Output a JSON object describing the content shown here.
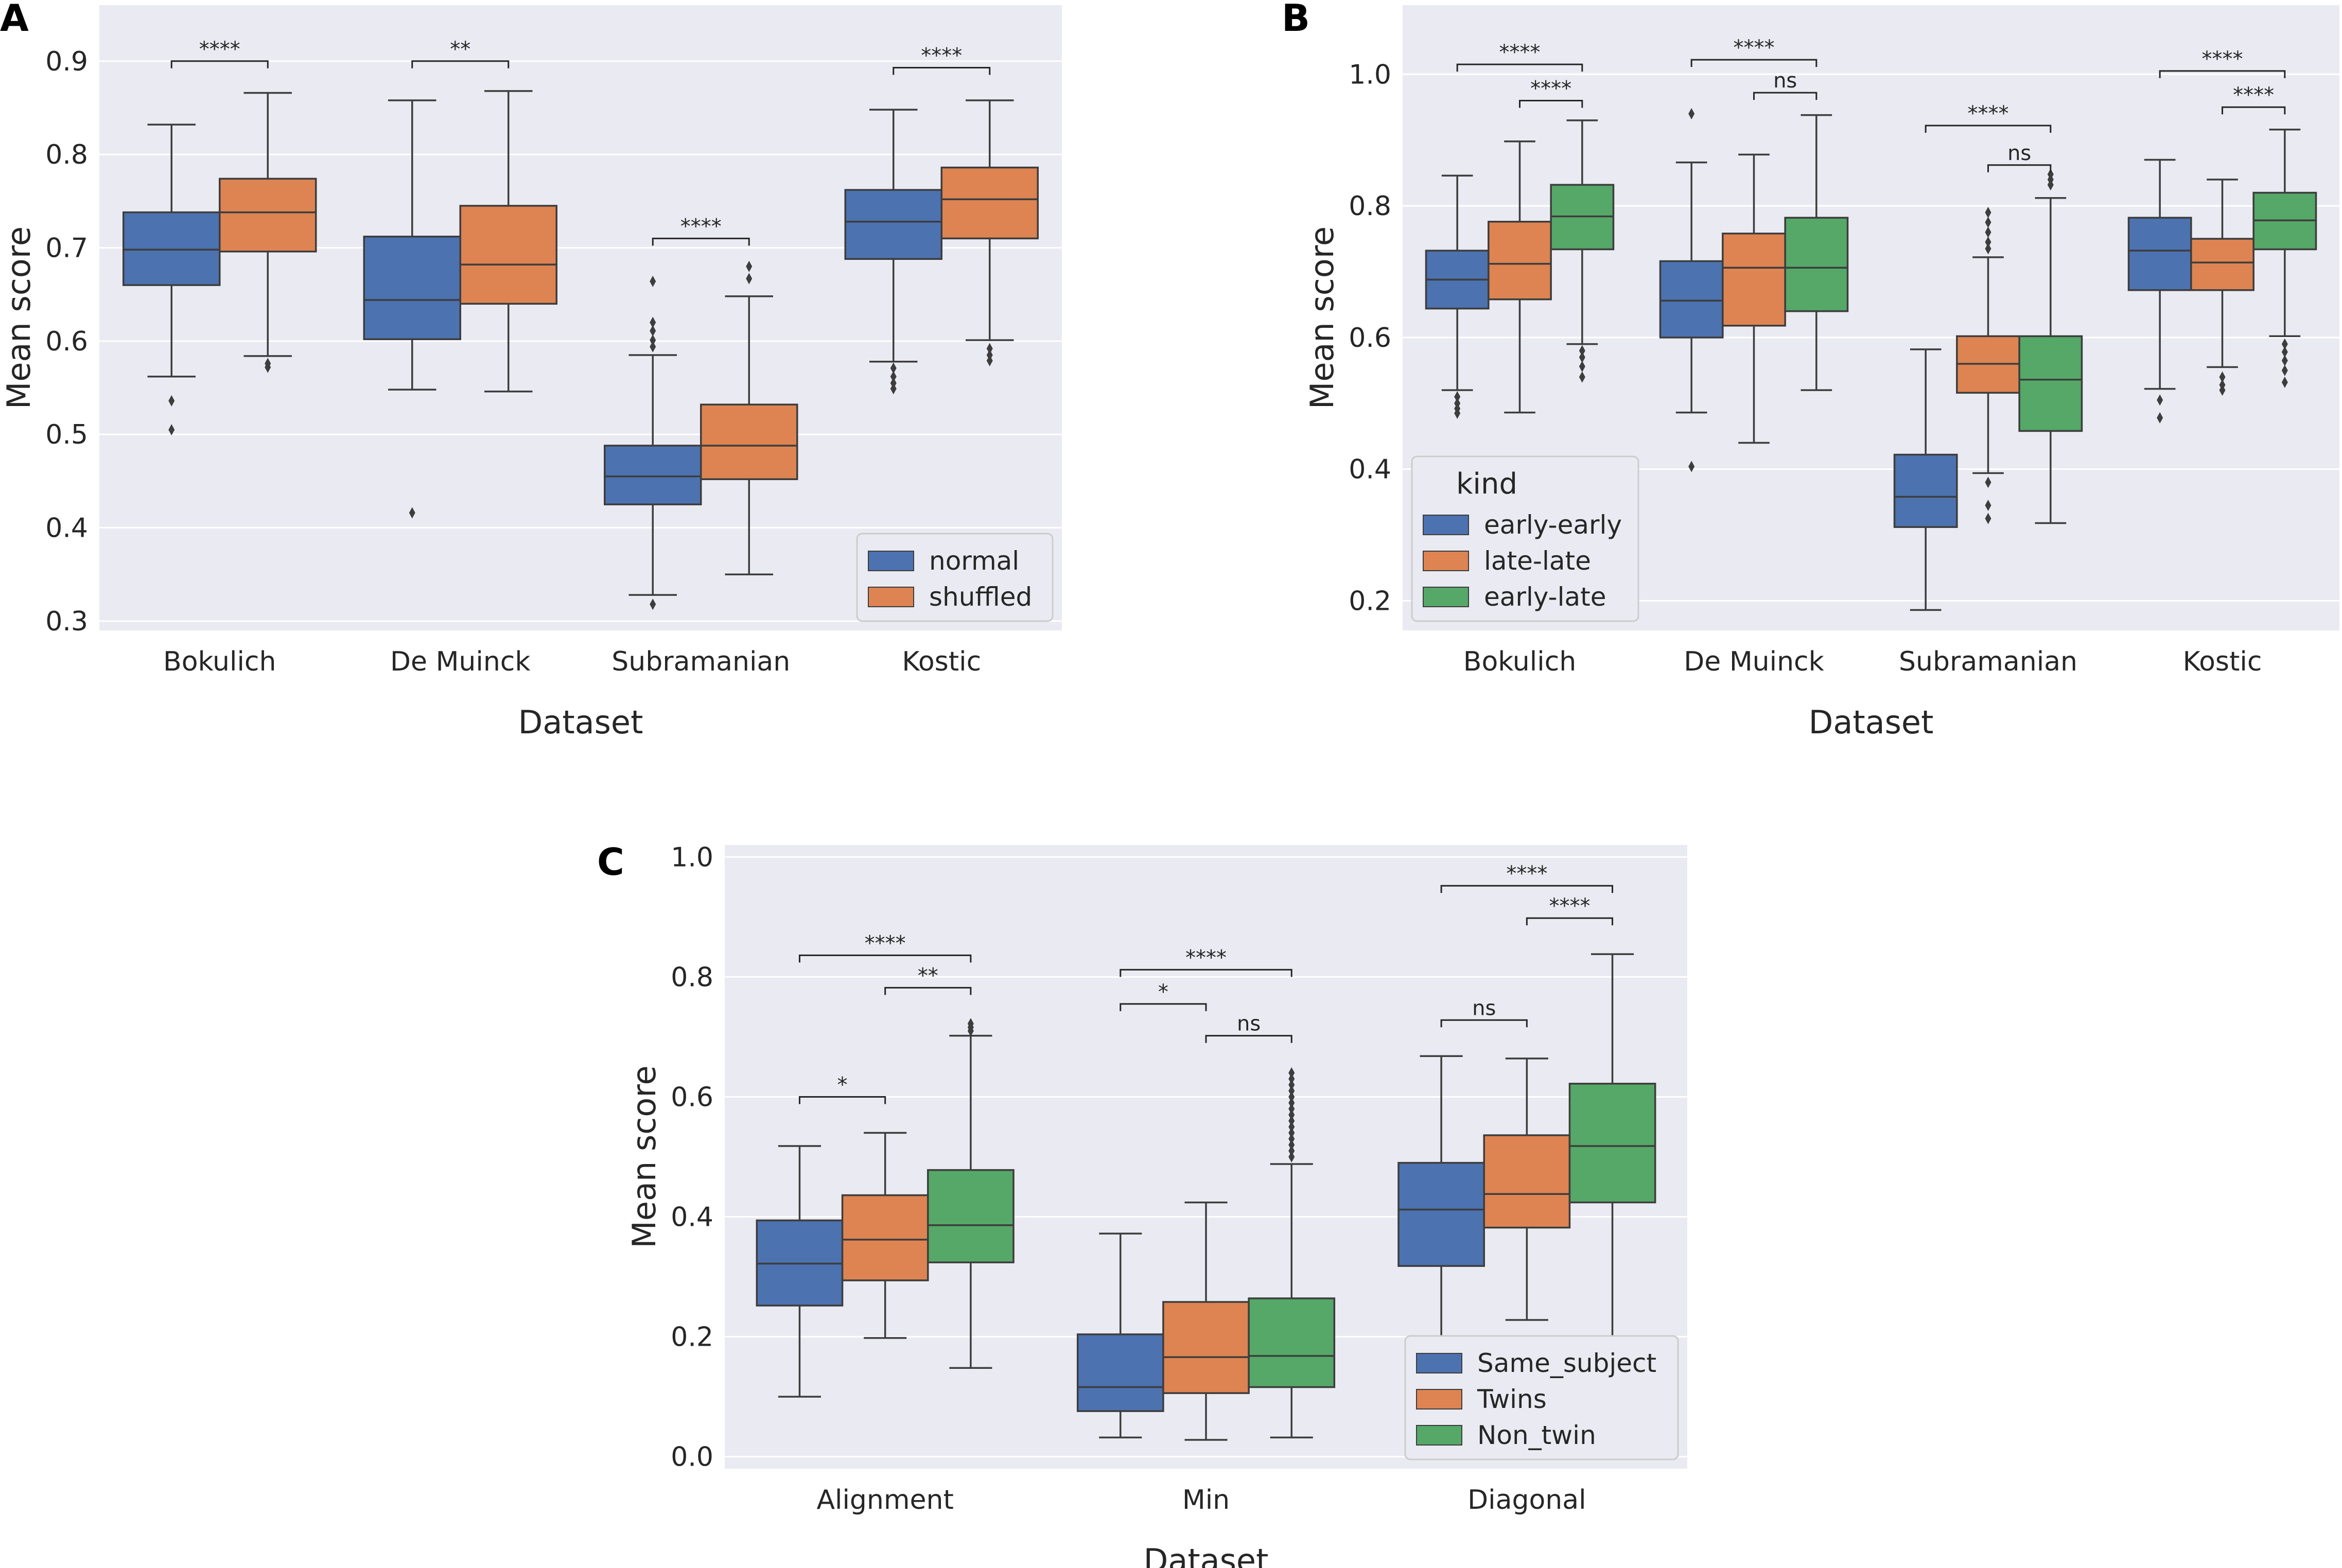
{
  "chart_data": [
    {
      "panel": "A",
      "type": "box",
      "xlabel": "Dataset",
      "ylabel": "Mean score",
      "ylim": [
        0.29,
        0.96
      ],
      "yticks": [
        0.3,
        0.4,
        0.5,
        0.6,
        0.7,
        0.8,
        0.9
      ],
      "ytick_labels": [
        "0.3",
        "0.4",
        "0.5",
        "0.6",
        "0.7",
        "0.8",
        "0.9"
      ],
      "categories": [
        "Bokulich",
        "De Muinck",
        "Subramanian",
        "Kostic"
      ],
      "legend": {
        "title": "",
        "position": "lower-right"
      },
      "series": [
        {
          "name": "normal",
          "color": "#4c72b0",
          "boxes": [
            {
              "whislo": 0.562,
              "q1": 0.66,
              "med": 0.698,
              "q3": 0.738,
              "whishi": 0.832,
              "fliers": [
                0.536,
                0.505
              ]
            },
            {
              "whislo": 0.548,
              "q1": 0.602,
              "med": 0.644,
              "q3": 0.712,
              "whishi": 0.858,
              "fliers": [
                0.416
              ]
            },
            {
              "whislo": 0.328,
              "q1": 0.425,
              "med": 0.455,
              "q3": 0.488,
              "whishi": 0.585,
              "fliers": [
                0.664,
                0.62,
                0.611,
                0.601,
                0.594,
                0.318
              ]
            },
            {
              "whislo": 0.578,
              "q1": 0.688,
              "med": 0.728,
              "q3": 0.762,
              "whishi": 0.848,
              "fliers": [
                0.571,
                0.562,
                0.555,
                0.549
              ]
            }
          ]
        },
        {
          "name": "shuffled",
          "color": "#dd8452",
          "boxes": [
            {
              "whislo": 0.584,
              "q1": 0.696,
              "med": 0.738,
              "q3": 0.774,
              "whishi": 0.866,
              "fliers": [
                0.576,
                0.572
              ]
            },
            {
              "whislo": 0.546,
              "q1": 0.64,
              "med": 0.682,
              "q3": 0.745,
              "whishi": 0.868,
              "fliers": []
            },
            {
              "whislo": 0.35,
              "q1": 0.452,
              "med": 0.488,
              "q3": 0.532,
              "whishi": 0.648,
              "fliers": [
                0.68,
                0.667
              ]
            },
            {
              "whislo": 0.601,
              "q1": 0.71,
              "med": 0.752,
              "q3": 0.786,
              "whishi": 0.858,
              "fliers": [
                0.592,
                0.585,
                0.579
              ]
            }
          ]
        }
      ],
      "annotations": [
        {
          "category": 0,
          "from": 0,
          "to": 1,
          "label": "****",
          "y": 0.9
        },
        {
          "category": 1,
          "from": 0,
          "to": 1,
          "label": "**",
          "y": 0.9
        },
        {
          "category": 2,
          "from": 0,
          "to": 1,
          "label": "****",
          "y": 0.71
        },
        {
          "category": 3,
          "from": 0,
          "to": 1,
          "label": "****",
          "y": 0.893
        }
      ]
    },
    {
      "panel": "B",
      "type": "box",
      "xlabel": "Dataset",
      "ylabel": "Mean score",
      "ylim": [
        0.155,
        1.105
      ],
      "yticks": [
        0.2,
        0.4,
        0.6,
        0.8,
        1.0
      ],
      "ytick_labels": [
        "0.2",
        "0.4",
        "0.6",
        "0.8",
        "1.0"
      ],
      "categories": [
        "Bokulich",
        "De Muinck",
        "Subramanian",
        "Kostic"
      ],
      "legend": {
        "title": "kind",
        "position": "lower-left"
      },
      "series": [
        {
          "name": "early-early",
          "color": "#4c72b0",
          "boxes": [
            {
              "whislo": 0.52,
              "q1": 0.644,
              "med": 0.688,
              "q3": 0.732,
              "whishi": 0.846,
              "fliers": [
                0.51,
                0.5,
                0.492,
                0.485
              ]
            },
            {
              "whislo": 0.486,
              "q1": 0.6,
              "med": 0.656,
              "q3": 0.716,
              "whishi": 0.866,
              "fliers": [
                0.94,
                0.404
              ]
            },
            {
              "whislo": 0.186,
              "q1": 0.312,
              "med": 0.358,
              "q3": 0.422,
              "whishi": 0.582,
              "fliers": []
            },
            {
              "whislo": 0.522,
              "q1": 0.672,
              "med": 0.732,
              "q3": 0.782,
              "whishi": 0.87,
              "fliers": [
                0.505,
                0.478
              ]
            }
          ]
        },
        {
          "name": "late-late",
          "color": "#dd8452",
          "boxes": [
            {
              "whislo": 0.486,
              "q1": 0.658,
              "med": 0.712,
              "q3": 0.776,
              "whishi": 0.898,
              "fliers": []
            },
            {
              "whislo": 0.44,
              "q1": 0.618,
              "med": 0.706,
              "q3": 0.758,
              "whishi": 0.878,
              "fliers": []
            },
            {
              "whislo": 0.394,
              "q1": 0.516,
              "med": 0.56,
              "q3": 0.602,
              "whishi": 0.722,
              "fliers": [
                0.79,
                0.775,
                0.76,
                0.745,
                0.735,
                0.38,
                0.345,
                0.325
              ]
            },
            {
              "whislo": 0.555,
              "q1": 0.672,
              "med": 0.714,
              "q3": 0.75,
              "whishi": 0.84,
              "fliers": [
                0.54,
                0.528,
                0.52
              ]
            }
          ]
        },
        {
          "name": "early-late",
          "color": "#55a868",
          "boxes": [
            {
              "whislo": 0.59,
              "q1": 0.734,
              "med": 0.784,
              "q3": 0.832,
              "whishi": 0.93,
              "fliers": [
                0.58,
                0.57,
                0.556,
                0.54
              ]
            },
            {
              "whislo": 0.52,
              "q1": 0.64,
              "med": 0.706,
              "q3": 0.782,
              "whishi": 0.938,
              "fliers": []
            },
            {
              "whislo": 0.318,
              "q1": 0.458,
              "med": 0.536,
              "q3": 0.602,
              "whishi": 0.812,
              "fliers": [
                0.848,
                0.84,
                0.832
              ]
            },
            {
              "whislo": 0.602,
              "q1": 0.734,
              "med": 0.778,
              "q3": 0.82,
              "whishi": 0.916,
              "fliers": [
                0.59,
                0.578,
                0.565,
                0.55,
                0.532
              ]
            }
          ]
        }
      ],
      "annotations": [
        {
          "category": 0,
          "from": 0,
          "to": 2,
          "label": "****",
          "y": 1.015
        },
        {
          "category": 0,
          "from": 1,
          "to": 2,
          "label": "****",
          "y": 0.96
        },
        {
          "category": 1,
          "from": 0,
          "to": 2,
          "label": "****",
          "y": 1.022
        },
        {
          "category": 1,
          "from": 1,
          "to": 2,
          "label": "ns",
          "y": 0.972
        },
        {
          "category": 2,
          "from": 0,
          "to": 2,
          "label": "****",
          "y": 0.922
        },
        {
          "category": 2,
          "from": 1,
          "to": 2,
          "label": "ns",
          "y": 0.862
        },
        {
          "category": 3,
          "from": 0,
          "to": 2,
          "label": "****",
          "y": 1.005
        },
        {
          "category": 3,
          "from": 1,
          "to": 2,
          "label": "****",
          "y": 0.95
        }
      ]
    },
    {
      "panel": "C",
      "type": "box",
      "xlabel": "Dataset",
      "ylabel": "Mean score",
      "ylim": [
        -0.02,
        1.02
      ],
      "yticks": [
        0.0,
        0.2,
        0.4,
        0.6,
        0.8,
        1.0
      ],
      "ytick_labels": [
        "0.0",
        "0.2",
        "0.4",
        "0.6",
        "0.8",
        "1.0"
      ],
      "categories": [
        "Alignment",
        "Min",
        "Diagonal"
      ],
      "legend": {
        "title": "",
        "position": "lower-right"
      },
      "series": [
        {
          "name": "Same_subject",
          "color": "#4c72b0",
          "boxes": [
            {
              "whislo": 0.1,
              "q1": 0.252,
              "med": 0.322,
              "q3": 0.394,
              "whishi": 0.518,
              "fliers": []
            },
            {
              "whislo": 0.032,
              "q1": 0.076,
              "med": 0.116,
              "q3": 0.204,
              "whishi": 0.372,
              "fliers": []
            },
            {
              "whislo": 0.13,
              "q1": 0.318,
              "med": 0.412,
              "q3": 0.49,
              "whishi": 0.668,
              "fliers": []
            }
          ]
        },
        {
          "name": "Twins",
          "color": "#dd8452",
          "boxes": [
            {
              "whislo": 0.198,
              "q1": 0.294,
              "med": 0.362,
              "q3": 0.436,
              "whishi": 0.54,
              "fliers": []
            },
            {
              "whislo": 0.028,
              "q1": 0.106,
              "med": 0.166,
              "q3": 0.258,
              "whishi": 0.424,
              "fliers": []
            },
            {
              "whislo": 0.228,
              "q1": 0.382,
              "med": 0.438,
              "q3": 0.536,
              "whishi": 0.664,
              "fliers": []
            }
          ]
        },
        {
          "name": "Non_twin",
          "color": "#55a868",
          "boxes": [
            {
              "whislo": 0.148,
              "q1": 0.324,
              "med": 0.386,
              "q3": 0.478,
              "whishi": 0.702,
              "fliers": [
                0.722,
                0.716,
                0.71
              ]
            },
            {
              "whislo": 0.032,
              "q1": 0.116,
              "med": 0.168,
              "q3": 0.264,
              "whishi": 0.488,
              "fliers": [
                0.64,
                0.63,
                0.62,
                0.61,
                0.6,
                0.59,
                0.58,
                0.57,
                0.56,
                0.55,
                0.54,
                0.53,
                0.52,
                0.51,
                0.5
              ]
            },
            {
              "whislo": 0.2,
              "q1": 0.424,
              "med": 0.518,
              "q3": 0.622,
              "whishi": 0.838,
              "fliers": []
            }
          ]
        }
      ],
      "annotations": [
        {
          "category": 0,
          "from": 0,
          "to": 2,
          "label": "****",
          "y": 0.836
        },
        {
          "category": 0,
          "from": 1,
          "to": 2,
          "label": "**",
          "y": 0.782
        },
        {
          "category": 0,
          "from": 0,
          "to": 1,
          "label": "*",
          "y": 0.6
        },
        {
          "category": 1,
          "from": 0,
          "to": 2,
          "label": "****",
          "y": 0.812
        },
        {
          "category": 1,
          "from": 0,
          "to": 1,
          "label": "*",
          "y": 0.755
        },
        {
          "category": 1,
          "from": 1,
          "to": 2,
          "label": "ns",
          "y": 0.702
        },
        {
          "category": 2,
          "from": 0,
          "to": 2,
          "label": "****",
          "y": 0.952
        },
        {
          "category": 2,
          "from": 1,
          "to": 2,
          "label": "****",
          "y": 0.898
        },
        {
          "category": 2,
          "from": 0,
          "to": 1,
          "label": "ns",
          "y": 0.728
        }
      ]
    }
  ]
}
